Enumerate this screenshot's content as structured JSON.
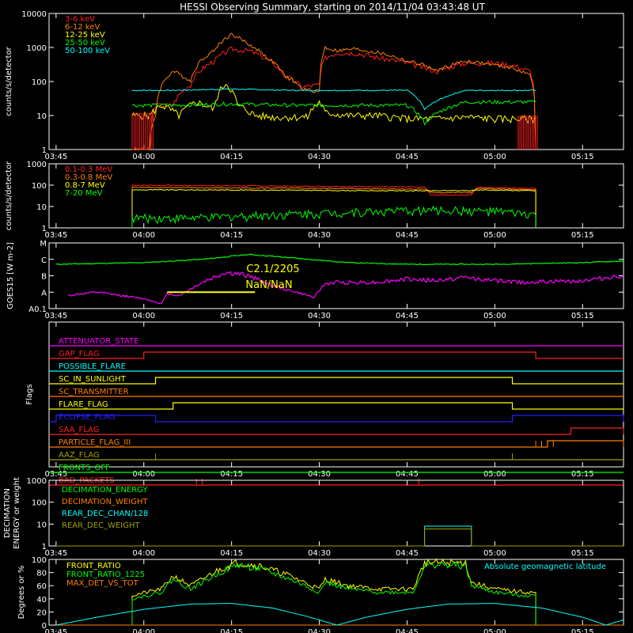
{
  "title": "HESSI Observing Summary, starting on 2014/11/04 03:43:48 UT",
  "xticks": [
    "03:45",
    "04:00",
    "04:15",
    "04:30",
    "04:45",
    "05:00",
    "05:15"
  ],
  "colors": {
    "red": "#ff2020",
    "orange": "#ff7f00",
    "yellow": "#ffff00",
    "green": "#00ff00",
    "cyan": "#00ffff",
    "magenta": "#ff00ff",
    "blue": "#2020ff",
    "olive": "#a0a000",
    "brown": "#ff6000",
    "axis": "#ffffff"
  },
  "chart_data": [
    {
      "id": "lightcurves",
      "type": "line",
      "ylabel": "counts/s/detector",
      "yscale": "log",
      "yticks": [
        "10000",
        "1000",
        "100",
        "10",
        "1"
      ],
      "series": [
        {
          "name": "3-6 keV",
          "color": "red",
          "x": [
            "03:58",
            "04:01",
            "04:02",
            "04:05",
            "04:08",
            "04:12",
            "04:15",
            "04:18",
            "04:21",
            "04:24",
            "04:27",
            "04:30",
            "04:31",
            "04:33",
            "04:36",
            "04:40",
            "04:45",
            "04:48",
            "04:50",
            "04:55",
            "05:00",
            "05:03",
            "05:06",
            "05:07"
          ],
          "y": [
            1,
            1,
            20,
            20,
            80,
            400,
            900,
            800,
            450,
            150,
            70,
            80,
            500,
            700,
            700,
            500,
            350,
            250,
            200,
            350,
            350,
            300,
            200,
            1
          ]
        },
        {
          "name": "6-12 keV",
          "color": "orange",
          "x": [
            "03:58",
            "04:01",
            "04:02",
            "04:05",
            "04:08",
            "04:12",
            "04:15",
            "04:18",
            "04:21",
            "04:24",
            "04:27",
            "04:30",
            "04:31",
            "04:33",
            "04:36",
            "04:40",
            "04:45",
            "04:48",
            "04:50",
            "04:55",
            "05:00",
            "05:03",
            "05:06",
            "05:07"
          ],
          "y": [
            1,
            1,
            10,
            200,
            100,
            800,
            2400,
            1200,
            500,
            150,
            60,
            50,
            1000,
            800,
            900,
            700,
            400,
            300,
            200,
            400,
            300,
            250,
            150,
            1
          ]
        },
        {
          "name": "12-25 keV",
          "color": "yellow",
          "x": [
            "03:58",
            "04:01",
            "04:03",
            "04:06",
            "04:09",
            "04:12",
            "04:14",
            "04:16",
            "04:19",
            "04:22",
            "04:25",
            "04:28",
            "04:30",
            "04:31",
            "04:35",
            "04:40",
            "04:45",
            "04:48",
            "04:50",
            "04:55",
            "05:00",
            "05:03",
            "05:07"
          ],
          "y": [
            10,
            10,
            20,
            10,
            25,
            15,
            90,
            20,
            10,
            9,
            9,
            9,
            25,
            12,
            10,
            10,
            8,
            8,
            8,
            9,
            8,
            8,
            8
          ]
        },
        {
          "name": "25-50 keV",
          "color": "green",
          "x": [
            "03:58",
            "04:05",
            "04:15",
            "04:25",
            "04:35",
            "04:45",
            "04:48",
            "04:55",
            "05:00",
            "05:07"
          ],
          "y": [
            20,
            20,
            22,
            20,
            20,
            20,
            6,
            25,
            25,
            25
          ]
        },
        {
          "name": "50-100 keV",
          "color": "cyan",
          "x": [
            "03:58",
            "04:05",
            "04:15",
            "04:25",
            "04:35",
            "04:45",
            "04:48",
            "04:55",
            "05:00",
            "05:07"
          ],
          "y": [
            55,
            55,
            60,
            55,
            55,
            55,
            15,
            55,
            55,
            55
          ]
        }
      ]
    },
    {
      "id": "highenergy",
      "type": "line",
      "ylabel": "counts/s/detector",
      "yscale": "log",
      "yticks": [
        "1000",
        "100",
        "10",
        "1"
      ],
      "series": [
        {
          "name": "0.1-0.3 MeV",
          "color": "red",
          "x": [
            "03:58",
            "04:10",
            "04:25",
            "04:40",
            "04:48",
            "04:49",
            "04:56",
            "04:57",
            "05:07"
          ],
          "y": [
            100,
            95,
            90,
            85,
            80,
            35,
            35,
            80,
            70
          ]
        },
        {
          "name": "0.3-0.8 MeV",
          "color": "orange",
          "x": [
            "03:58",
            "04:10",
            "04:25",
            "04:40",
            "04:48",
            "04:49",
            "04:56",
            "04:57",
            "05:07"
          ],
          "y": [
            80,
            75,
            72,
            68,
            65,
            45,
            45,
            70,
            60
          ]
        },
        {
          "name": "0.8-7 MeV",
          "color": "yellow",
          "x": [
            "03:58",
            "04:10",
            "04:25",
            "04:40",
            "04:48",
            "04:49",
            "04:56",
            "04:57",
            "05:07"
          ],
          "y": [
            60,
            60,
            58,
            55,
            55,
            55,
            55,
            60,
            55
          ]
        },
        {
          "name": "7-20 MeV",
          "color": "green",
          "x": [
            "03:58",
            "04:10",
            "04:20",
            "04:30",
            "04:40",
            "04:50",
            "05:00",
            "05:07"
          ],
          "y": [
            3,
            3,
            4,
            5,
            6,
            7,
            6,
            4
          ]
        }
      ]
    },
    {
      "id": "goes",
      "type": "line",
      "ylabel": "GOES15 [W m-2]",
      "yticks": [
        "M",
        "C",
        "B",
        "A",
        "A0.1"
      ],
      "annotations": [
        "C2.1/2205",
        "NaN/NaN"
      ],
      "series": [
        {
          "name": "",
          "color": "green",
          "x": [
            "03:45",
            "04:00",
            "04:10",
            "04:18",
            "04:25",
            "04:35",
            "04:45",
            "05:00",
            "05:15",
            "05:22"
          ],
          "y": [
            2.7,
            2.8,
            3.0,
            3.3,
            3.1,
            2.8,
            2.7,
            2.7,
            2.8,
            2.9
          ]
        },
        {
          "name": "",
          "color": "magenta",
          "x": [
            "03:47",
            "03:52",
            "03:56",
            "04:00",
            "04:03",
            "04:04",
            "04:06",
            "04:10",
            "04:14",
            "04:18",
            "04:22",
            "04:26",
            "04:29",
            "04:31",
            "04:33",
            "04:40",
            "04:45",
            "04:50",
            "04:55",
            "05:00",
            "05:05",
            "05:15",
            "05:22"
          ],
          "y": [
            0.8,
            1.0,
            0.8,
            0.6,
            0.3,
            0.9,
            0.8,
            1.6,
            2.2,
            2.0,
            1.4,
            1.0,
            0.7,
            1.5,
            1.6,
            1.6,
            1.8,
            1.7,
            1.9,
            1.7,
            1.6,
            1.7,
            2.0
          ]
        },
        {
          "name": "",
          "color": "yellow",
          "x": [
            "04:04",
            "04:19"
          ],
          "y": [
            1.0,
            1.0
          ]
        }
      ]
    },
    {
      "id": "flags",
      "type": "line",
      "ylabel": "Flags",
      "series": [
        {
          "name": "ATTENUATOR_STATE",
          "color": "magenta",
          "steps": []
        },
        {
          "name": "GAP_FLAG",
          "color": "red",
          "steps": [
            [
              "04:00",
              "05:07"
            ]
          ]
        },
        {
          "name": "POSSIBLE_FLARE",
          "color": "cyan",
          "steps": []
        },
        {
          "name": "SC_IN_SUNLIGHT",
          "color": "yellow",
          "steps": [
            [
              "04:02",
              "05:03"
            ]
          ]
        },
        {
          "name": "SC_TRANSMITTER",
          "color": "orange",
          "steps": []
        },
        {
          "name": "FLARE_FLAG",
          "color": "yellow",
          "steps": [
            [
              "04:05",
              "05:03"
            ]
          ]
        },
        {
          "name": "ECLIPSE_FLAG",
          "color": "blue",
          "steps": [
            [
              "03:45",
              "04:02"
            ],
            [
              "05:03",
              "05:22"
            ]
          ]
        },
        {
          "name": "SAA_FLAG",
          "color": "red",
          "steps": [
            [
              "05:13",
              "05:22"
            ]
          ]
        },
        {
          "name": "PARTICLE_FLAG_III",
          "color": "orange",
          "steps": [
            [
              "05:09",
              "05:22"
            ]
          ]
        },
        {
          "name": "AAZ_FLAG",
          "color": "olive",
          "steps": []
        },
        {
          "name": "FRONTS_OFF",
          "color": "green",
          "steps": []
        },
        {
          "name": "BAD_PACKETS",
          "color": "red",
          "steps": []
        }
      ]
    },
    {
      "id": "decimation",
      "type": "line",
      "ylabel": "DECIMATION ENERGY or weight",
      "yscale": "log",
      "yticks": [
        "1000",
        "100",
        "10",
        "1"
      ],
      "series": [
        {
          "name": "DECIMATION_ENERGY",
          "color": "green"
        },
        {
          "name": "DECIMATION_WEIGHT",
          "color": "orange"
        },
        {
          "name": "REAR_DEC_CHAN/128",
          "color": "cyan",
          "x": [
            "03:45",
            "04:48",
            "04:48",
            "04:56",
            "04:56",
            "05:22"
          ],
          "y": [
            1,
            1,
            8,
            8,
            1,
            1
          ]
        },
        {
          "name": "REAR_DEC_WEIGHT",
          "color": "olive",
          "x": [
            "03:45",
            "04:48",
            "04:48",
            "04:56",
            "04:56",
            "05:22"
          ],
          "y": [
            1,
            1,
            6,
            6,
            1,
            1
          ]
        }
      ]
    },
    {
      "id": "ratios",
      "type": "line",
      "ylabel": "Degrees or %",
      "yticks": [
        "100",
        "80",
        "60",
        "40",
        "20",
        "0"
      ],
      "note": "Absolute geomagnetic latitude",
      "series": [
        {
          "name": "FRONT_RATIO",
          "color": "yellow",
          "x": [
            "03:58",
            "04:03",
            "04:05",
            "04:08",
            "04:10",
            "04:13",
            "04:16",
            "04:20",
            "04:25",
            "04:30",
            "04:31",
            "04:35",
            "04:40",
            "04:46",
            "04:48",
            "04:50",
            "04:55",
            "04:56",
            "05:00",
            "05:05",
            "05:07"
          ],
          "y": [
            45,
            55,
            75,
            60,
            70,
            85,
            95,
            90,
            75,
            55,
            70,
            60,
            55,
            55,
            95,
            95,
            95,
            65,
            55,
            50,
            50
          ]
        },
        {
          "name": "FRONT_RATIO_1225",
          "color": "green",
          "x": [
            "03:58",
            "04:03",
            "04:05",
            "04:08",
            "04:10",
            "04:13",
            "04:16",
            "04:20",
            "04:25",
            "04:30",
            "04:31",
            "04:35",
            "04:40",
            "04:46",
            "04:48",
            "04:50",
            "04:55",
            "04:56",
            "05:00",
            "05:05",
            "05:07"
          ],
          "y": [
            40,
            50,
            70,
            55,
            65,
            80,
            92,
            85,
            70,
            50,
            65,
            55,
            50,
            50,
            90,
            92,
            90,
            60,
            50,
            45,
            45
          ]
        },
        {
          "name": "MAX_DET_VS_TOT",
          "color": "orange",
          "x": [
            "03:45",
            "05:22"
          ],
          "y": [
            0,
            0
          ]
        },
        {
          "name": "",
          "color": "cyan",
          "x": [
            "03:45",
            "03:52",
            "04:00",
            "04:08",
            "04:15",
            "04:22",
            "04:28",
            "04:33",
            "04:38",
            "04:45",
            "04:52",
            "05:00",
            "05:08",
            "05:15",
            "05:19",
            "05:22"
          ],
          "y": [
            0,
            12,
            24,
            32,
            33,
            26,
            13,
            0,
            12,
            24,
            32,
            33,
            26,
            12,
            0,
            8
          ]
        }
      ]
    }
  ]
}
